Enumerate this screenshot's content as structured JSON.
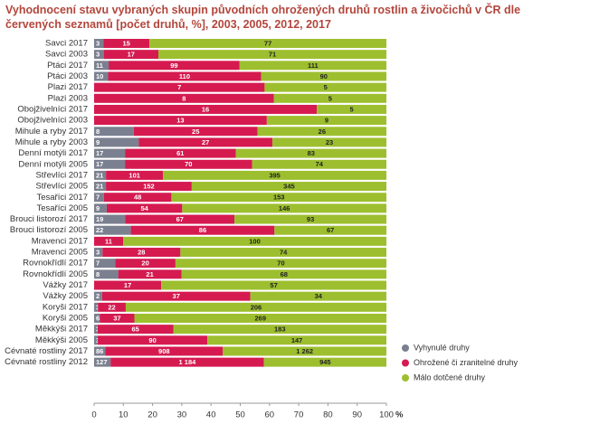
{
  "chart_data": {
    "type": "bar",
    "orientation": "horizontal",
    "stacking": "percent",
    "title": "Vyhodnocení stavu vybraných skupin původních ohrožených druhů rostlin a živočichů v ČR dle červených seznamů [počet druhů, %], 2003, 2005, 2012, 2017",
    "categories": [
      "Savci 2017",
      "Savci 2003",
      "Ptáci 2017",
      "Ptáci 2003",
      "Plazi 2017",
      "Plazi 2003",
      "Obojživelníci 2017",
      "Obojživelníci 2003",
      "Mihule a ryby 2017",
      "Mihule a ryby 2003",
      "Denní motýli 2017",
      "Denní motýli 2005",
      "Střevlíci 2017",
      "Střevlíci 2005",
      "Tesaříci 2017",
      "Tesaříci 2005",
      "Brouci listorozí 2017",
      "Brouci listorozí 2005",
      "Mravenci 2017",
      "Mravenci 2005",
      "Rovnokřídlí 2017",
      "Rovnokřídlí 2005",
      "Vážky 2017",
      "Vážky 2005",
      "Koryši 2017",
      "Koryši 2005",
      "Měkkýši 2017",
      "Měkkýši 2005",
      "Cévnaté rostliny 2017",
      "Cévnaté rostliny 2012"
    ],
    "series": [
      {
        "name": "Vyhynulé druhy",
        "color": "#7b8090",
        "values": [
          3,
          3,
          11,
          10,
          null,
          null,
          null,
          null,
          8,
          9,
          17,
          17,
          21,
          21,
          7,
          9,
          19,
          22,
          null,
          3,
          7,
          8,
          null,
          2,
          3,
          6,
          3,
          3,
          86,
          127
        ]
      },
      {
        "name": "Ohrožené či zranitelné druhy",
        "color": "#d51a50",
        "values": [
          15,
          17,
          99,
          110,
          7,
          8,
          16,
          13,
          25,
          27,
          61,
          70,
          101,
          152,
          48,
          54,
          67,
          86,
          11,
          28,
          20,
          21,
          17,
          37,
          22,
          37,
          65,
          90,
          908,
          1184
        ],
        "value_labels": [
          "15",
          "17",
          "99",
          "110",
          "7",
          "8",
          "16",
          "13",
          "25",
          "27",
          "61",
          "70",
          "101",
          "152",
          "48",
          "54",
          "67",
          "86",
          "11",
          "28",
          "20",
          "21",
          "17",
          "37",
          "22",
          "37",
          "65",
          "90",
          "908",
          "1 184"
        ]
      },
      {
        "name": "Málo dotčené druhy",
        "color": "#9dbf2f",
        "values": [
          77,
          71,
          111,
          90,
          5,
          5,
          5,
          9,
          26,
          23,
          83,
          74,
          395,
          345,
          153,
          146,
          93,
          67,
          100,
          74,
          70,
          68,
          57,
          34,
          206,
          269,
          183,
          147,
          1262,
          945
        ],
        "value_labels": [
          "77",
          "71",
          "111",
          "90",
          "5",
          "5",
          "5",
          "9",
          "26",
          "23",
          "83",
          "74",
          "395",
          "345",
          "153",
          "146",
          "93",
          "67",
          "100",
          "74",
          "70",
          "68",
          "57",
          "34",
          "206",
          "269",
          "183",
          "147",
          "1 262",
          "945"
        ]
      }
    ],
    "xlim": [
      0,
      100
    ],
    "xticks": [
      0,
      10,
      20,
      30,
      40,
      50,
      60,
      70,
      80,
      90,
      100
    ],
    "xlabel": "%",
    "legend": "lower right"
  }
}
